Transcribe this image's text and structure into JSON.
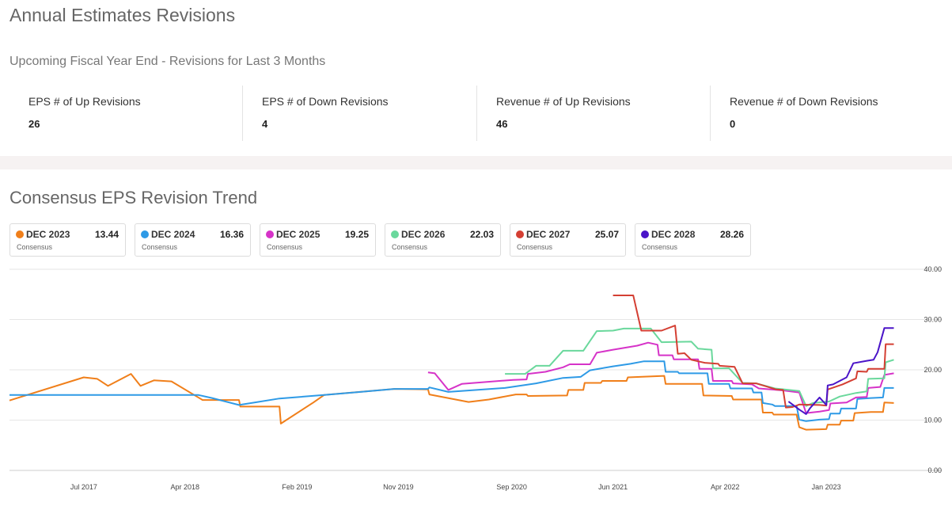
{
  "page": {
    "title": "Annual Estimates Revisions",
    "subtitle": "Upcoming Fiscal Year End - Revisions for Last 3 Months",
    "chart_title": "Consensus EPS Revision Trend"
  },
  "stats": [
    {
      "label": "EPS # of Up Revisions",
      "value": "26"
    },
    {
      "label": "EPS # of Down Revisions",
      "value": "4"
    },
    {
      "label": "Revenue # of Up Revisions",
      "value": "46"
    },
    {
      "label": "Revenue # of Down Revisions",
      "value": "0"
    }
  ],
  "legend": [
    {
      "name": "DEC 2023",
      "value": "13.44",
      "sub": "Consensus",
      "color": "#f07f1a"
    },
    {
      "name": "DEC 2024",
      "value": "16.36",
      "sub": "Consensus",
      "color": "#2e9ae6"
    },
    {
      "name": "DEC 2025",
      "value": "19.25",
      "sub": "Consensus",
      "color": "#d633c8"
    },
    {
      "name": "DEC 2026",
      "value": "22.03",
      "sub": "Consensus",
      "color": "#6ad89c"
    },
    {
      "name": "DEC 2027",
      "value": "25.07",
      "sub": "Consensus",
      "color": "#d43f33"
    },
    {
      "name": "DEC 2028",
      "value": "28.26",
      "sub": "Consensus",
      "color": "#4a14c8"
    }
  ],
  "chart_data": {
    "type": "line",
    "title": "Consensus EPS Revision Trend",
    "xlabel": "",
    "ylabel": "",
    "x_ticks": [
      {
        "label": "Jul 2017",
        "t": 2017.5
      },
      {
        "label": "Apr 2018",
        "t": 2018.25
      },
      {
        "label": "Feb 2019",
        "t": 2019.08
      },
      {
        "label": "Nov 2019",
        "t": 2019.83
      },
      {
        "label": "Sep 2020",
        "t": 2020.67
      },
      {
        "label": "Jun 2021",
        "t": 2021.42
      },
      {
        "label": "Apr 2022",
        "t": 2022.25
      },
      {
        "label": "Jan 2023",
        "t": 2023.0
      }
    ],
    "y_ticks": [
      "0.00",
      "10.00",
      "20.00",
      "30.00",
      "40.00"
    ],
    "ylim": [
      0,
      40
    ],
    "xlim": [
      2016.95,
      2023.55
    ],
    "grid": true,
    "series": [
      {
        "name": "DEC 2023",
        "color": "#f07f1a",
        "points": [
          [
            2016.95,
            13.9
          ],
          [
            2017.5,
            18.5
          ],
          [
            2017.6,
            18.2
          ],
          [
            2017.68,
            16.8
          ],
          [
            2017.85,
            19.2
          ],
          [
            2017.92,
            16.8
          ],
          [
            2018.02,
            17.9
          ],
          [
            2018.15,
            17.7
          ],
          [
            2018.38,
            14.0
          ],
          [
            2018.65,
            14.0
          ],
          [
            2018.66,
            12.7
          ],
          [
            2018.95,
            12.7
          ],
          [
            2018.96,
            9.3
          ],
          [
            2019.2,
            13.5
          ],
          [
            2019.28,
            15.0
          ],
          [
            2019.8,
            16.2
          ],
          [
            2020.05,
            16.1
          ],
          [
            2020.06,
            15.1
          ],
          [
            2020.35,
            13.6
          ],
          [
            2020.5,
            14.1
          ],
          [
            2020.7,
            15.1
          ],
          [
            2020.78,
            15.1
          ],
          [
            2020.79,
            14.8
          ],
          [
            2021.08,
            14.9
          ],
          [
            2021.09,
            16.0
          ],
          [
            2021.2,
            16.0
          ],
          [
            2021.21,
            17.4
          ],
          [
            2021.33,
            17.4
          ],
          [
            2021.34,
            17.8
          ],
          [
            2021.52,
            17.8
          ],
          [
            2021.53,
            18.5
          ],
          [
            2021.8,
            18.8
          ],
          [
            2021.81,
            17.2
          ],
          [
            2022.08,
            17.2
          ],
          [
            2022.09,
            14.9
          ],
          [
            2022.3,
            14.8
          ],
          [
            2022.31,
            14.1
          ],
          [
            2022.52,
            14.1
          ],
          [
            2022.53,
            11.5
          ],
          [
            2022.6,
            11.5
          ],
          [
            2022.61,
            11.1
          ],
          [
            2022.78,
            11.1
          ],
          [
            2022.8,
            8.6
          ],
          [
            2022.85,
            8.1
          ],
          [
            2023.0,
            8.2
          ],
          [
            2023.01,
            9.1
          ],
          [
            2023.1,
            9.1
          ],
          [
            2023.11,
            9.9
          ],
          [
            2023.2,
            9.9
          ],
          [
            2023.21,
            11.4
          ],
          [
            2023.33,
            11.6
          ],
          [
            2023.42,
            11.6
          ],
          [
            2023.43,
            13.5
          ],
          [
            2023.5,
            13.4
          ]
        ]
      },
      {
        "name": "DEC 2024",
        "color": "#2e9ae6",
        "points": [
          [
            2016.95,
            15.0
          ],
          [
            2018.35,
            15.0
          ],
          [
            2018.45,
            14.4
          ],
          [
            2018.65,
            13.0
          ],
          [
            2018.95,
            14.3
          ],
          [
            2019.28,
            15.0
          ],
          [
            2019.55,
            15.6
          ],
          [
            2019.8,
            16.2
          ],
          [
            2020.05,
            16.2
          ],
          [
            2020.06,
            16.5
          ],
          [
            2020.2,
            15.6
          ],
          [
            2020.62,
            16.4
          ],
          [
            2020.85,
            17.3
          ],
          [
            2021.05,
            18.4
          ],
          [
            2021.18,
            18.6
          ],
          [
            2021.25,
            19.9
          ],
          [
            2021.42,
            20.7
          ],
          [
            2021.55,
            21.2
          ],
          [
            2021.65,
            21.7
          ],
          [
            2021.8,
            21.7
          ],
          [
            2021.81,
            19.6
          ],
          [
            2021.9,
            19.6
          ],
          [
            2021.91,
            19.3
          ],
          [
            2022.12,
            19.3
          ],
          [
            2022.13,
            17.2
          ],
          [
            2022.28,
            17.2
          ],
          [
            2022.29,
            16.3
          ],
          [
            2022.45,
            16.3
          ],
          [
            2022.46,
            15.5
          ],
          [
            2022.52,
            15.5
          ],
          [
            2022.53,
            13.4
          ],
          [
            2022.6,
            13.1
          ],
          [
            2022.62,
            12.8
          ],
          [
            2022.78,
            12.8
          ],
          [
            2022.8,
            10.1
          ],
          [
            2022.85,
            9.8
          ],
          [
            2022.95,
            10.1
          ],
          [
            2023.02,
            10.2
          ],
          [
            2023.03,
            11.3
          ],
          [
            2023.1,
            11.3
          ],
          [
            2023.11,
            12.3
          ],
          [
            2023.22,
            12.3
          ],
          [
            2023.23,
            14.2
          ],
          [
            2023.33,
            14.4
          ],
          [
            2023.42,
            14.5
          ],
          [
            2023.43,
            16.4
          ],
          [
            2023.5,
            16.4
          ]
        ]
      },
      {
        "name": "DEC 2025",
        "color": "#d633c8",
        "points": [
          [
            2020.05,
            19.5
          ],
          [
            2020.1,
            19.3
          ],
          [
            2020.2,
            16.0
          ],
          [
            2020.3,
            17.2
          ],
          [
            2020.68,
            18.0
          ],
          [
            2020.78,
            18.1
          ],
          [
            2020.79,
            19.2
          ],
          [
            2020.92,
            19.6
          ],
          [
            2021.05,
            20.5
          ],
          [
            2021.1,
            21.1
          ],
          [
            2021.25,
            21.1
          ],
          [
            2021.3,
            23.4
          ],
          [
            2021.42,
            24.0
          ],
          [
            2021.6,
            24.8
          ],
          [
            2021.68,
            25.4
          ],
          [
            2021.75,
            25.0
          ],
          [
            2021.76,
            22.9
          ],
          [
            2021.86,
            22.9
          ],
          [
            2021.87,
            22.1
          ],
          [
            2022.05,
            22.1
          ],
          [
            2022.06,
            20.2
          ],
          [
            2022.15,
            20.2
          ],
          [
            2022.16,
            17.8
          ],
          [
            2022.3,
            17.8
          ],
          [
            2022.31,
            17.3
          ],
          [
            2022.45,
            17.1
          ],
          [
            2022.5,
            16.3
          ],
          [
            2022.68,
            15.9
          ],
          [
            2022.8,
            15.5
          ],
          [
            2022.85,
            11.4
          ],
          [
            2022.95,
            11.7
          ],
          [
            2023.02,
            12.0
          ],
          [
            2023.03,
            13.3
          ],
          [
            2023.15,
            13.5
          ],
          [
            2023.22,
            14.5
          ],
          [
            2023.3,
            14.6
          ],
          [
            2023.31,
            16.4
          ],
          [
            2023.4,
            16.6
          ],
          [
            2023.43,
            19.0
          ],
          [
            2023.5,
            19.3
          ]
        ]
      },
      {
        "name": "DEC 2026",
        "color": "#6ad89c",
        "points": [
          [
            2020.62,
            19.2
          ],
          [
            2020.77,
            19.2
          ],
          [
            2020.85,
            20.8
          ],
          [
            2020.95,
            20.8
          ],
          [
            2021.05,
            23.8
          ],
          [
            2021.2,
            23.8
          ],
          [
            2021.3,
            27.7
          ],
          [
            2021.42,
            27.8
          ],
          [
            2021.5,
            28.2
          ],
          [
            2021.7,
            28.2
          ],
          [
            2021.78,
            25.5
          ],
          [
            2022.0,
            25.6
          ],
          [
            2022.05,
            24.2
          ],
          [
            2022.15,
            24.0
          ],
          [
            2022.16,
            20.3
          ],
          [
            2022.28,
            20.3
          ],
          [
            2022.38,
            17.4
          ],
          [
            2022.48,
            17.3
          ],
          [
            2022.62,
            16.3
          ],
          [
            2022.8,
            15.8
          ],
          [
            2022.85,
            12.8
          ],
          [
            2022.9,
            13.4
          ],
          [
            2023.02,
            13.7
          ],
          [
            2023.1,
            14.7
          ],
          [
            2023.22,
            15.4
          ],
          [
            2023.3,
            15.7
          ],
          [
            2023.31,
            18.2
          ],
          [
            2023.43,
            18.3
          ],
          [
            2023.44,
            21.5
          ],
          [
            2023.5,
            22.0
          ]
        ]
      },
      {
        "name": "DEC 2027",
        "color": "#d43f33",
        "points": [
          [
            2021.42,
            34.8
          ],
          [
            2021.57,
            34.8
          ],
          [
            2021.63,
            27.8
          ],
          [
            2021.78,
            27.8
          ],
          [
            2021.88,
            28.8
          ],
          [
            2021.9,
            23.2
          ],
          [
            2021.95,
            23.3
          ],
          [
            2022.0,
            22.0
          ],
          [
            2022.1,
            21.4
          ],
          [
            2022.2,
            21.2
          ],
          [
            2022.21,
            20.8
          ],
          [
            2022.32,
            20.6
          ],
          [
            2022.38,
            17.3
          ],
          [
            2022.48,
            17.3
          ],
          [
            2022.63,
            16.1
          ],
          [
            2022.68,
            16.0
          ],
          [
            2022.7,
            12.5
          ],
          [
            2022.75,
            12.6
          ],
          [
            2022.8,
            13.1
          ],
          [
            2022.95,
            13.0
          ],
          [
            2023.0,
            12.9
          ],
          [
            2023.01,
            16.1
          ],
          [
            2023.12,
            17.1
          ],
          [
            2023.22,
            18.3
          ],
          [
            2023.23,
            19.7
          ],
          [
            2023.3,
            19.6
          ],
          [
            2023.31,
            20.2
          ],
          [
            2023.43,
            20.2
          ],
          [
            2023.44,
            25.1
          ],
          [
            2023.5,
            25.1
          ]
        ]
      },
      {
        "name": "DEC 2028",
        "color": "#4a14c8",
        "points": [
          [
            2022.72,
            13.7
          ],
          [
            2022.8,
            12.1
          ],
          [
            2022.85,
            11.2
          ],
          [
            2022.88,
            12.4
          ],
          [
            2022.95,
            14.5
          ],
          [
            2023.0,
            13.0
          ],
          [
            2023.01,
            16.9
          ],
          [
            2023.05,
            17.1
          ],
          [
            2023.15,
            18.5
          ],
          [
            2023.2,
            21.3
          ],
          [
            2023.3,
            21.8
          ],
          [
            2023.35,
            22.0
          ],
          [
            2023.38,
            23.5
          ],
          [
            2023.43,
            28.3
          ],
          [
            2023.5,
            28.3
          ]
        ]
      }
    ]
  }
}
